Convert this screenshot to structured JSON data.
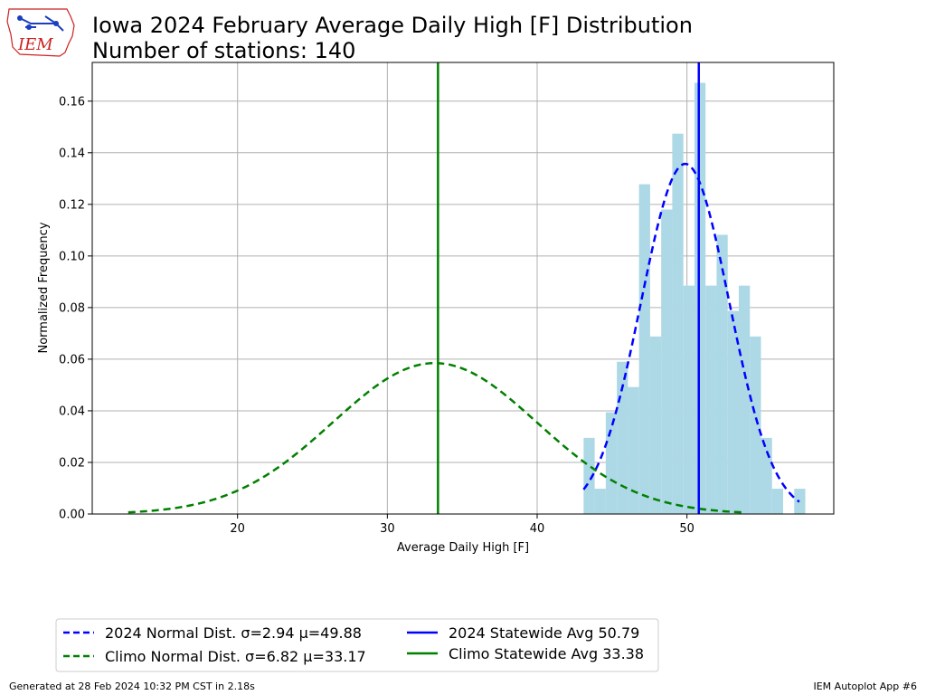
{
  "title_line1": "Iowa 2024 February Average Daily High [F] Distribution",
  "title_line2": "Number of stations: 140",
  "logo_text": "IEM",
  "footer_left": "Generated at 28 Feb 2024 10:32 PM CST in 2.18s",
  "footer_right": "IEM Autoplot App #6",
  "colors": {
    "hist": "#add8e6",
    "blue": "#0000ff",
    "green": "#008000",
    "grid": "#b0b0b0",
    "logo_red": "#cc2222",
    "logo_blue": "#1a3fbf"
  },
  "chart_data": {
    "type": "bar",
    "xlabel": "Average Daily High [F]",
    "ylabel": "Normalized Frequency",
    "xlim": [
      10.3,
      59.8
    ],
    "ylim": [
      0,
      0.175
    ],
    "xticks": [
      20,
      30,
      40,
      50
    ],
    "yticks": [
      0.0,
      0.02,
      0.04,
      0.06,
      0.08,
      0.1,
      0.12,
      0.14,
      0.16
    ],
    "grid": true,
    "legend_position": "below-left",
    "histogram": {
      "bin_edges": [
        43.1,
        43.84,
        44.58,
        45.32,
        46.06,
        46.8,
        47.54,
        48.28,
        49.02,
        49.76,
        50.5,
        51.24,
        51.98,
        52.72,
        53.46,
        54.2,
        54.94,
        55.68,
        56.42,
        57.16,
        57.9
      ],
      "values": [
        0.0295,
        0.0098,
        0.0394,
        0.059,
        0.0492,
        0.1278,
        0.0688,
        0.118,
        0.1474,
        0.0885,
        0.1671,
        0.0885,
        0.1082,
        0.0787,
        0.0885,
        0.0688,
        0.0295,
        0.0098,
        0.0,
        0.0098
      ]
    },
    "series": [
      {
        "name": "2024 Normal Dist. σ=2.94 μ=49.88",
        "kind": "normal",
        "sigma": 2.94,
        "mu": 49.88,
        "x_range": [
          43.1,
          57.5
        ],
        "style": "dashed",
        "color": "#0000ff"
      },
      {
        "name": "Climo Normal Dist. σ=6.82 μ=33.17",
        "kind": "normal",
        "sigma": 6.82,
        "mu": 33.17,
        "x_range": [
          12.7,
          53.7
        ],
        "style": "dashed",
        "color": "#008000"
      },
      {
        "name": "2024 Statewide Avg 50.79",
        "kind": "vline",
        "x": 50.79,
        "style": "solid",
        "color": "#0000ff"
      },
      {
        "name": "Climo Statewide Avg 33.38",
        "kind": "vline",
        "x": 33.38,
        "style": "solid",
        "color": "#008000"
      }
    ]
  }
}
